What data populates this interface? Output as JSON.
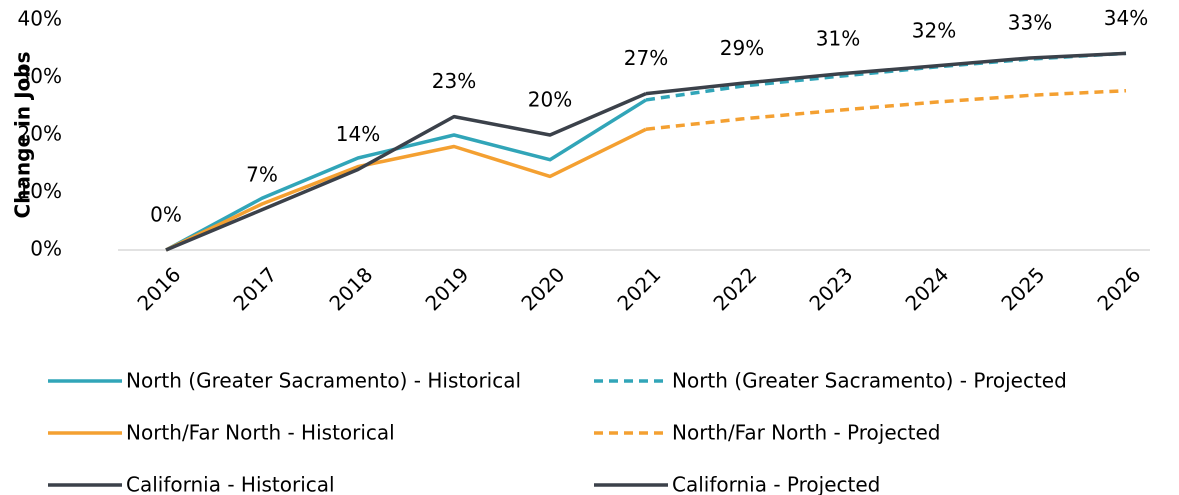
{
  "chart_data": {
    "type": "line",
    "y_label": "Change in Jobs",
    "categories": [
      "2016",
      "2017",
      "2018",
      "2019",
      "2020",
      "2021",
      "2022",
      "2023",
      "2024",
      "2025",
      "2026"
    ],
    "ylim": [
      0,
      40
    ],
    "yticks": [
      {
        "value": 0,
        "label": "0%"
      },
      {
        "value": 10,
        "label": "10%"
      },
      {
        "value": 20,
        "label": "20%"
      },
      {
        "value": 30,
        "label": "30%"
      },
      {
        "value": 40,
        "label": "40%"
      }
    ],
    "grid": false,
    "legend": "bottom",
    "series": [
      {
        "name": "North (Greater Sacramento) - Historical",
        "color": "#31a5b8",
        "dash": false,
        "values": [
          0,
          9,
          16,
          20,
          15.7,
          26.1,
          null,
          null,
          null,
          null,
          null
        ]
      },
      {
        "name": "North (Greater Sacramento) - Projected",
        "color": "#31a5b8",
        "dash": true,
        "values": [
          null,
          null,
          null,
          null,
          null,
          26.1,
          28.5,
          30.2,
          31.8,
          33.2,
          34.2
        ]
      },
      {
        "name": "North/Far North - Historical",
        "color": "#f4a031",
        "dash": false,
        "values": [
          0,
          8,
          14.5,
          18,
          12.8,
          21,
          null,
          null,
          null,
          null,
          null
        ]
      },
      {
        "name": "North/Far North - Projected",
        "color": "#f4a031",
        "dash": true,
        "values": [
          null,
          null,
          null,
          null,
          null,
          21,
          22.8,
          24.3,
          25.7,
          26.9,
          27.7
        ]
      },
      {
        "name": "California - Historical",
        "color": "#3b414a",
        "dash": false,
        "values": [
          0,
          7,
          14,
          23.2,
          20,
          27.2,
          null,
          null,
          null,
          null,
          null
        ],
        "value_labels": [
          "0%",
          "7%",
          "14%",
          "23%",
          "20%",
          "27%",
          null,
          null,
          null,
          null,
          null
        ]
      },
      {
        "name": "California - Projected",
        "color": "#3b414a",
        "dash": false,
        "values": [
          null,
          null,
          null,
          null,
          null,
          27.2,
          29,
          30.6,
          32,
          33.4,
          34.2
        ],
        "value_labels": [
          null,
          null,
          null,
          null,
          null,
          null,
          "29%",
          "31%",
          "32%",
          "33%",
          "34%"
        ]
      }
    ]
  }
}
